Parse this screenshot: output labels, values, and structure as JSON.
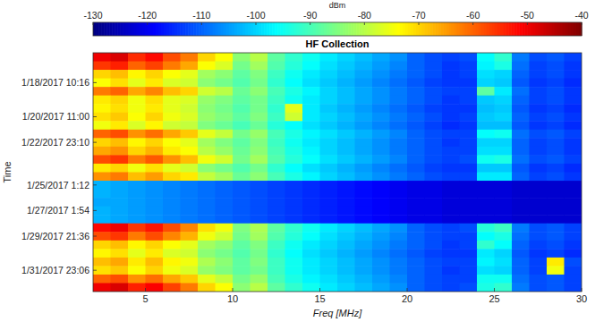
{
  "chart_data": {
    "type": "heatmap",
    "title": "HF Collection",
    "x_label": "Freq [MHz]",
    "y_label": "Time",
    "x_bins": [
      2,
      3,
      4,
      5,
      6,
      7,
      8,
      9,
      10,
      11,
      12,
      13,
      14,
      15,
      16,
      17,
      18,
      19,
      20,
      21,
      22,
      23,
      24,
      25,
      26,
      27,
      28,
      29,
      30
    ],
    "xlim": [
      2,
      30
    ],
    "xticks": [
      5,
      10,
      15,
      20,
      25,
      30
    ],
    "categories": [
      null,
      null,
      null,
      "1/18/2017 10:16",
      null,
      null,
      null,
      "1/20/2017 11:00",
      null,
      null,
      "1/22/2017 23:10",
      null,
      null,
      null,
      null,
      "1/25/2017 1:12",
      null,
      null,
      "1/27/2017 1:54",
      null,
      null,
      "1/29/2017 21:36",
      null,
      null,
      null,
      "1/31/2017 23:06",
      null,
      null
    ],
    "cells": [
      [
        -50,
        -48,
        -55,
        -52,
        -58,
        -62,
        -70,
        -74,
        -84,
        -80,
        -88,
        -92,
        -95,
        -98,
        -100,
        -102,
        -104,
        -106,
        -110,
        -112,
        -113,
        -112,
        -96,
        -92,
        -108,
        -112,
        -111,
        -113
      ],
      [
        -56,
        -54,
        -60,
        -57,
        -62,
        -66,
        -74,
        -77,
        -86,
        -82,
        -89,
        -93,
        -96,
        -99,
        -101,
        -103,
        -105,
        -107,
        -110,
        -112,
        -114,
        -113,
        -97,
        -94,
        -109,
        -113,
        -112,
        -114
      ],
      [
        -70,
        -68,
        -73,
        -70,
        -74,
        -76,
        -82,
        -84,
        -88,
        -85,
        -91,
        -95,
        -98,
        -100,
        -102,
        -104,
        -106,
        -108,
        -110,
        -112,
        -114,
        -113,
        -99,
        -100,
        -110,
        -113,
        -112,
        -114
      ],
      [
        -74,
        -71,
        -76,
        -72,
        -77,
        -78,
        -84,
        -86,
        -89,
        -86,
        -92,
        -96,
        -99,
        -101,
        -103,
        -105,
        -107,
        -109,
        -111,
        -113,
        -114,
        -114,
        -100,
        -101,
        -111,
        -114,
        -113,
        -115
      ],
      [
        -62,
        -60,
        -66,
        -63,
        -68,
        -70,
        -78,
        -80,
        -87,
        -84,
        -90,
        -94,
        -97,
        -100,
        -102,
        -104,
        -106,
        -108,
        -110,
        -112,
        -113,
        -113,
        -88,
        -98,
        -109,
        -113,
        -112,
        -114
      ],
      [
        -72,
        -70,
        -75,
        -71,
        -76,
        -77,
        -83,
        -85,
        -88,
        -86,
        -91,
        -95,
        -98,
        -100,
        -102,
        -104,
        -106,
        -108,
        -110,
        -112,
        -114,
        -113,
        -101,
        -100,
        -110,
        -113,
        -112,
        -114
      ],
      [
        -73,
        -71,
        -75,
        -72,
        -76,
        -78,
        -84,
        -86,
        -89,
        -86,
        -92,
        -76,
        -98,
        -101,
        -103,
        -105,
        -107,
        -109,
        -111,
        -113,
        -114,
        -114,
        -102,
        -101,
        -111,
        -114,
        -113,
        -115
      ],
      [
        -71,
        -69,
        -74,
        -70,
        -75,
        -77,
        -83,
        -85,
        -88,
        -85,
        -91,
        -78,
        -98,
        -100,
        -102,
        -104,
        -106,
        -108,
        -110,
        -112,
        -114,
        -113,
        -101,
        -100,
        -110,
        -113,
        -112,
        -114
      ],
      [
        -75,
        -72,
        -77,
        -73,
        -78,
        -79,
        -85,
        -87,
        -90,
        -87,
        -93,
        -96,
        -99,
        -101,
        -103,
        -105,
        -107,
        -109,
        -111,
        -113,
        -115,
        -114,
        -102,
        -102,
        -111,
        -114,
        -113,
        -115
      ],
      [
        -60,
        -58,
        -64,
        -61,
        -66,
        -69,
        -76,
        -79,
        -86,
        -83,
        -90,
        -94,
        -97,
        -99,
        -101,
        -103,
        -105,
        -107,
        -110,
        -112,
        -113,
        -113,
        -96,
        -95,
        -109,
        -112,
        -111,
        -113
      ],
      [
        -70,
        -68,
        -73,
        -70,
        -74,
        -76,
        -82,
        -85,
        -88,
        -85,
        -91,
        -95,
        -98,
        -100,
        -102,
        -104,
        -106,
        -108,
        -110,
        -112,
        -114,
        -113,
        -100,
        -100,
        -110,
        -113,
        -112,
        -114
      ],
      [
        -66,
        -64,
        -70,
        -67,
        -72,
        -74,
        -80,
        -83,
        -87,
        -84,
        -90,
        -94,
        -97,
        -100,
        -102,
        -104,
        -106,
        -108,
        -110,
        -112,
        -113,
        -113,
        -99,
        -99,
        -110,
        -113,
        -112,
        -114
      ],
      [
        -58,
        -56,
        -62,
        -59,
        -64,
        -68,
        -75,
        -78,
        -86,
        -82,
        -89,
        -93,
        -96,
        -99,
        -101,
        -103,
        -105,
        -107,
        -110,
        -112,
        -113,
        -112,
        -95,
        -94,
        -109,
        -112,
        -111,
        -113
      ],
      [
        -72,
        -70,
        -75,
        -71,
        -76,
        -78,
        -84,
        -86,
        -89,
        -86,
        -92,
        -96,
        -99,
        -101,
        -103,
        -105,
        -107,
        -109,
        -111,
        -113,
        -114,
        -114,
        -101,
        -101,
        -111,
        -114,
        -113,
        -115
      ],
      [
        -64,
        -62,
        -68,
        -65,
        -70,
        -72,
        -79,
        -82,
        -87,
        -84,
        -90,
        -94,
        -97,
        -100,
        -102,
        -104,
        -106,
        -108,
        -110,
        -112,
        -113,
        -113,
        -98,
        -98,
        -110,
        -113,
        -112,
        -114
      ],
      [
        -103,
        -104,
        -105,
        -106,
        -107,
        -108,
        -109,
        -110,
        -111,
        -112,
        -113,
        -114,
        -115,
        -116,
        -117,
        -118,
        -119,
        -120,
        -121,
        -121,
        -122,
        -122,
        -122,
        -122,
        -123,
        -123,
        -123,
        -123
      ],
      [
        -103,
        -104,
        -105,
        -106,
        -107,
        -108,
        -109,
        -110,
        -111,
        -112,
        -113,
        -114,
        -115,
        -116,
        -117,
        -118,
        -119,
        -120,
        -121,
        -121,
        -122,
        -122,
        -122,
        -122,
        -123,
        -123,
        -123,
        -123
      ],
      [
        -104,
        -104,
        -105,
        -106,
        -107,
        -108,
        -109,
        -110,
        -111,
        -112,
        -113,
        -114,
        -115,
        -116,
        -117,
        -118,
        -119,
        -120,
        -121,
        -121,
        -122,
        -122,
        -122,
        -122,
        -123,
        -123,
        -123,
        -123
      ],
      [
        -103,
        -104,
        -105,
        -106,
        -107,
        -108,
        -109,
        -110,
        -111,
        -112,
        -113,
        -114,
        -115,
        -116,
        -117,
        -118,
        -119,
        -120,
        -121,
        -121,
        -122,
        -122,
        -122,
        -122,
        -123,
        -123,
        -123,
        -123
      ],
      [
        -103,
        -104,
        -105,
        -106,
        -107,
        -108,
        -109,
        -110,
        -111,
        -112,
        -113,
        -114,
        -115,
        -116,
        -117,
        -118,
        -119,
        -120,
        -121,
        -121,
        -122,
        -122,
        -122,
        -122,
        -123,
        -123,
        -123,
        -123
      ],
      [
        -52,
        -50,
        -56,
        -53,
        -58,
        -63,
        -71,
        -75,
        -85,
        -81,
        -88,
        -92,
        -95,
        -98,
        -100,
        -102,
        -104,
        -106,
        -110,
        -112,
        -113,
        -112,
        -93,
        -91,
        -108,
        -112,
        -111,
        -113
      ],
      [
        -58,
        -56,
        -62,
        -58,
        -63,
        -67,
        -75,
        -78,
        -86,
        -82,
        -89,
        -93,
        -96,
        -99,
        -101,
        -103,
        -105,
        -107,
        -110,
        -112,
        -113,
        -113,
        -96,
        -94,
        -109,
        -112,
        -111,
        -113
      ],
      [
        -70,
        -68,
        -73,
        -70,
        -74,
        -76,
        -82,
        -84,
        -88,
        -85,
        -91,
        -95,
        -98,
        -100,
        -102,
        -104,
        -106,
        -108,
        -110,
        -112,
        -114,
        -113,
        -92,
        -96,
        -110,
        -113,
        -112,
        -114
      ],
      [
        -73,
        -71,
        -76,
        -72,
        -77,
        -78,
        -84,
        -86,
        -89,
        -86,
        -92,
        -96,
        -99,
        -101,
        -103,
        -105,
        -107,
        -109,
        -111,
        -113,
        -114,
        -114,
        -98,
        -100,
        -111,
        -114,
        -113,
        -115
      ],
      [
        -68,
        -66,
        -72,
        -68,
        -73,
        -75,
        -81,
        -84,
        -88,
        -85,
        -91,
        -95,
        -98,
        -100,
        -102,
        -104,
        -106,
        -108,
        -110,
        -112,
        -113,
        -113,
        -97,
        -99,
        -110,
        -113,
        -72,
        -112
      ],
      [
        -71,
        -69,
        -74,
        -70,
        -75,
        -77,
        -83,
        -85,
        -88,
        -86,
        -91,
        -95,
        -98,
        -100,
        -102,
        -104,
        -106,
        -108,
        -110,
        -112,
        -114,
        -113,
        -99,
        -100,
        -110,
        -113,
        -75,
        -113
      ],
      [
        -60,
        -58,
        -64,
        -61,
        -66,
        -69,
        -76,
        -79,
        -86,
        -83,
        -90,
        -94,
        -97,
        -99,
        -101,
        -103,
        -105,
        -107,
        -110,
        -112,
        -113,
        -113,
        -95,
        -95,
        -109,
        -112,
        -111,
        -113
      ],
      [
        -50,
        -48,
        -54,
        -51,
        -57,
        -62,
        -70,
        -74,
        -84,
        -80,
        -88,
        -92,
        -95,
        -98,
        -100,
        -102,
        -104,
        -106,
        -110,
        -112,
        -113,
        -112,
        -94,
        -92,
        -108,
        -112,
        -111,
        -113
      ]
    ],
    "colorbar": {
      "label": "dBm",
      "range": [
        -130,
        -40
      ],
      "ticks": [
        -130,
        -120,
        -110,
        -100,
        -90,
        -80,
        -70,
        -60,
        -50,
        -40
      ]
    }
  }
}
